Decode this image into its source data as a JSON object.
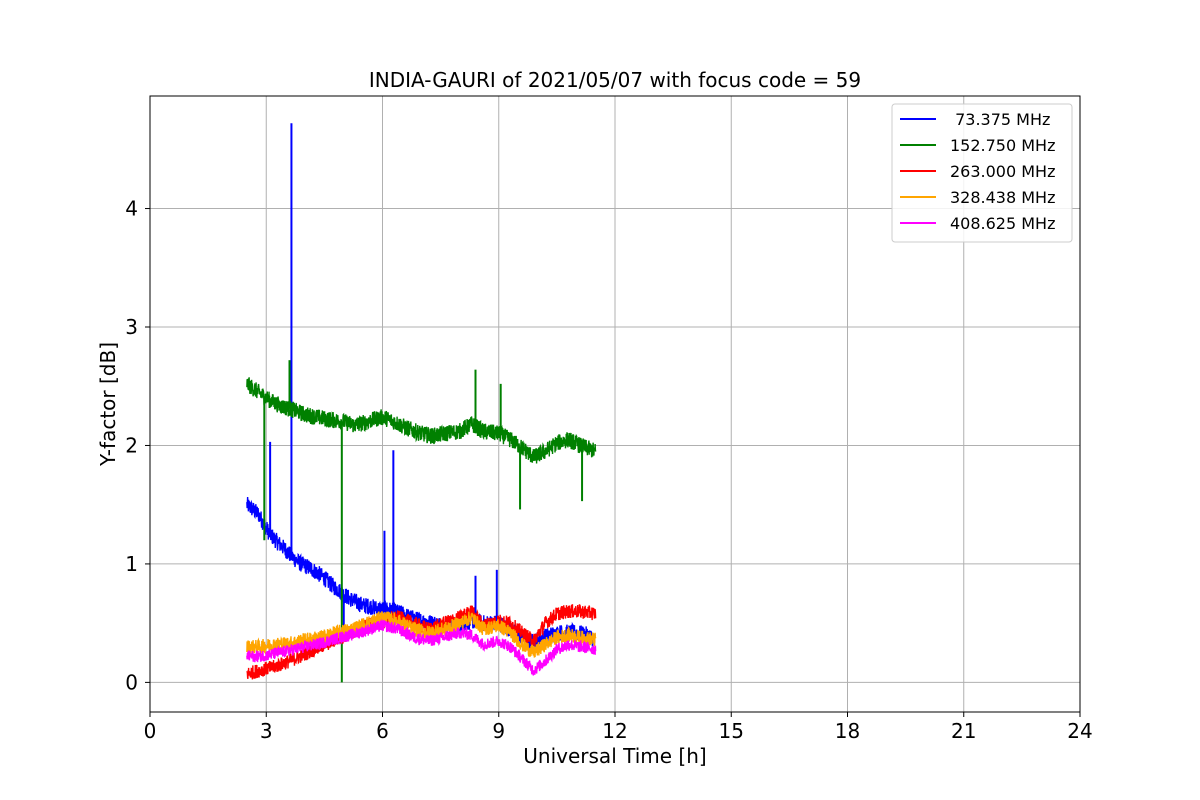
{
  "chart_data": {
    "type": "line",
    "title": "INDIA-GAURI of 2021/05/07 with focus code = 59",
    "xlabel": "Universal Time [h]",
    "ylabel": "Y-factor [dB]",
    "xlim": [
      0,
      24
    ],
    "ylim": [
      -0.25,
      4.95
    ],
    "x_ticks": [
      0,
      3,
      6,
      9,
      12,
      15,
      18,
      21,
      24
    ],
    "x_tick_labels": [
      "0",
      "3",
      "6",
      "9",
      "12",
      "15",
      "18",
      "21",
      "24"
    ],
    "y_ticks": [
      0,
      1,
      2,
      3,
      4
    ],
    "y_tick_labels": [
      "0",
      "1",
      "2",
      "3",
      "4"
    ],
    "grid": true,
    "legend_position": "top-right",
    "series": [
      {
        "name": " 73.375 MHz",
        "color": "#0000ff",
        "points": [
          [
            2.5,
            1.5
          ],
          [
            2.8,
            1.42
          ],
          [
            3.0,
            1.3
          ],
          [
            3.1,
            1.25
          ],
          [
            3.3,
            1.18
          ],
          [
            3.5,
            1.12
          ],
          [
            3.7,
            1.05
          ],
          [
            3.9,
            1.0
          ],
          [
            4.1,
            0.97
          ],
          [
            4.3,
            0.93
          ],
          [
            4.5,
            0.88
          ],
          [
            4.7,
            0.82
          ],
          [
            4.9,
            0.77
          ],
          [
            5.1,
            0.72
          ],
          [
            5.3,
            0.68
          ],
          [
            5.5,
            0.65
          ],
          [
            5.7,
            0.64
          ],
          [
            5.9,
            0.62
          ],
          [
            6.1,
            0.62
          ],
          [
            6.3,
            0.6
          ],
          [
            6.5,
            0.58
          ],
          [
            6.7,
            0.55
          ],
          [
            7.0,
            0.52
          ],
          [
            7.3,
            0.5
          ],
          [
            7.6,
            0.48
          ],
          [
            8.0,
            0.48
          ],
          [
            8.3,
            0.52
          ],
          [
            8.6,
            0.5
          ],
          [
            9.0,
            0.5
          ],
          [
            9.3,
            0.45
          ],
          [
            9.6,
            0.38
          ],
          [
            9.8,
            0.33
          ],
          [
            10.0,
            0.36
          ],
          [
            10.3,
            0.4
          ],
          [
            10.6,
            0.42
          ],
          [
            11.0,
            0.42
          ],
          [
            11.3,
            0.4
          ],
          [
            11.5,
            0.35
          ]
        ],
        "spikes": [
          [
            3.1,
            2.03
          ],
          [
            3.65,
            4.72
          ],
          [
            5.0,
            0.45
          ],
          [
            6.05,
            1.28
          ],
          [
            6.28,
            1.96
          ],
          [
            8.4,
            0.9
          ],
          [
            8.95,
            0.95
          ]
        ],
        "noise": 0.07
      },
      {
        "name": "152.750 MHz",
        "color": "#008000",
        "points": [
          [
            2.5,
            2.52
          ],
          [
            2.8,
            2.45
          ],
          [
            3.1,
            2.38
          ],
          [
            3.4,
            2.33
          ],
          [
            3.7,
            2.3
          ],
          [
            4.0,
            2.26
          ],
          [
            4.3,
            2.24
          ],
          [
            4.6,
            2.22
          ],
          [
            5.0,
            2.2
          ],
          [
            5.3,
            2.17
          ],
          [
            5.6,
            2.2
          ],
          [
            6.0,
            2.24
          ],
          [
            6.3,
            2.2
          ],
          [
            6.6,
            2.15
          ],
          [
            7.0,
            2.1
          ],
          [
            7.3,
            2.08
          ],
          [
            7.6,
            2.1
          ],
          [
            8.0,
            2.12
          ],
          [
            8.3,
            2.18
          ],
          [
            8.6,
            2.12
          ],
          [
            9.0,
            2.1
          ],
          [
            9.3,
            2.05
          ],
          [
            9.6,
            1.98
          ],
          [
            9.9,
            1.9
          ],
          [
            10.2,
            1.95
          ],
          [
            10.5,
            2.02
          ],
          [
            10.8,
            2.05
          ],
          [
            11.1,
            2.0
          ],
          [
            11.5,
            1.95
          ]
        ],
        "spikes": [
          [
            3.6,
            2.72
          ],
          [
            8.4,
            2.64
          ],
          [
            9.05,
            2.52
          ],
          [
            2.95,
            1.2
          ],
          [
            4.95,
            0.0
          ],
          [
            9.55,
            1.46
          ],
          [
            11.15,
            1.53
          ]
        ],
        "noise": 0.07
      },
      {
        "name": "263.000 MHz",
        "color": "#ff0000",
        "points": [
          [
            2.5,
            0.07
          ],
          [
            2.8,
            0.1
          ],
          [
            3.2,
            0.13
          ],
          [
            3.6,
            0.18
          ],
          [
            4.0,
            0.24
          ],
          [
            4.4,
            0.3
          ],
          [
            4.8,
            0.36
          ],
          [
            5.2,
            0.42
          ],
          [
            5.6,
            0.48
          ],
          [
            6.0,
            0.52
          ],
          [
            6.4,
            0.55
          ],
          [
            6.8,
            0.5
          ],
          [
            7.2,
            0.45
          ],
          [
            7.6,
            0.5
          ],
          [
            8.0,
            0.55
          ],
          [
            8.3,
            0.6
          ],
          [
            8.6,
            0.48
          ],
          [
            9.0,
            0.52
          ],
          [
            9.3,
            0.5
          ],
          [
            9.6,
            0.42
          ],
          [
            9.9,
            0.35
          ],
          [
            10.2,
            0.5
          ],
          [
            10.5,
            0.58
          ],
          [
            10.8,
            0.6
          ],
          [
            11.1,
            0.6
          ],
          [
            11.5,
            0.58
          ]
        ],
        "spikes": [],
        "noise": 0.06
      },
      {
        "name": "328.438 MHz",
        "color": "#ffa500",
        "points": [
          [
            2.5,
            0.3
          ],
          [
            2.8,
            0.3
          ],
          [
            3.2,
            0.32
          ],
          [
            3.6,
            0.33
          ],
          [
            4.0,
            0.36
          ],
          [
            4.4,
            0.38
          ],
          [
            4.8,
            0.42
          ],
          [
            5.2,
            0.45
          ],
          [
            5.6,
            0.5
          ],
          [
            6.0,
            0.55
          ],
          [
            6.4,
            0.52
          ],
          [
            6.8,
            0.45
          ],
          [
            7.2,
            0.42
          ],
          [
            7.6,
            0.45
          ],
          [
            8.0,
            0.5
          ],
          [
            8.3,
            0.55
          ],
          [
            8.6,
            0.45
          ],
          [
            9.0,
            0.48
          ],
          [
            9.3,
            0.42
          ],
          [
            9.6,
            0.32
          ],
          [
            9.9,
            0.25
          ],
          [
            10.2,
            0.32
          ],
          [
            10.5,
            0.38
          ],
          [
            10.8,
            0.4
          ],
          [
            11.1,
            0.38
          ],
          [
            11.5,
            0.36
          ]
        ],
        "spikes": [],
        "noise": 0.06
      },
      {
        "name": "408.625 MHz",
        "color": "#ff00ff",
        "points": [
          [
            2.5,
            0.22
          ],
          [
            2.8,
            0.22
          ],
          [
            3.2,
            0.24
          ],
          [
            3.6,
            0.27
          ],
          [
            4.0,
            0.3
          ],
          [
            4.4,
            0.33
          ],
          [
            4.8,
            0.37
          ],
          [
            5.2,
            0.4
          ],
          [
            5.6,
            0.44
          ],
          [
            6.0,
            0.48
          ],
          [
            6.4,
            0.45
          ],
          [
            6.8,
            0.38
          ],
          [
            7.2,
            0.35
          ],
          [
            7.6,
            0.38
          ],
          [
            8.0,
            0.42
          ],
          [
            8.3,
            0.4
          ],
          [
            8.6,
            0.32
          ],
          [
            9.0,
            0.35
          ],
          [
            9.3,
            0.3
          ],
          [
            9.6,
            0.2
          ],
          [
            9.9,
            0.1
          ],
          [
            10.2,
            0.18
          ],
          [
            10.5,
            0.28
          ],
          [
            10.8,
            0.32
          ],
          [
            11.1,
            0.3
          ],
          [
            11.5,
            0.28
          ]
        ],
        "spikes": [],
        "noise": 0.05
      }
    ]
  }
}
